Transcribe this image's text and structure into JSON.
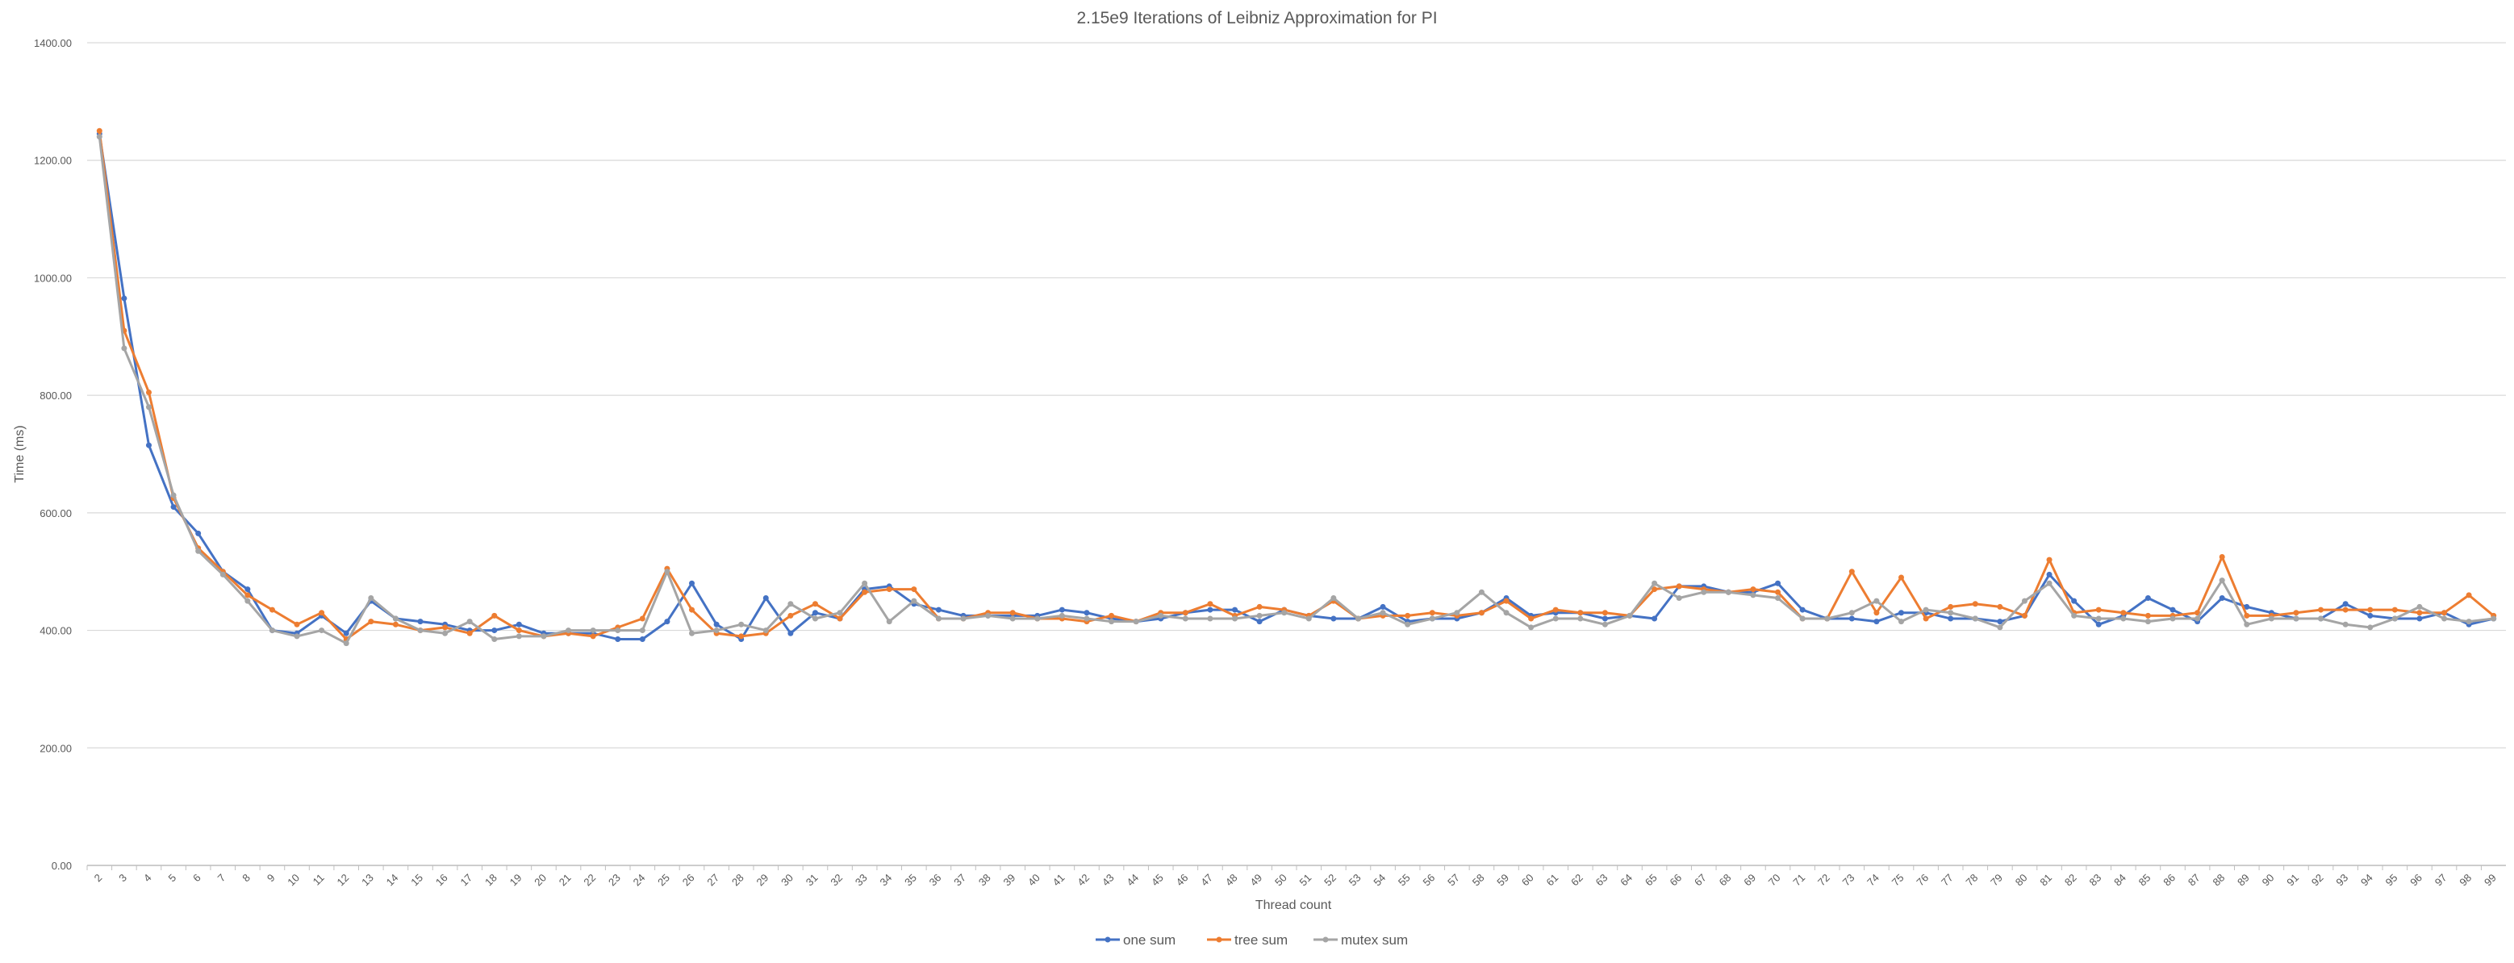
{
  "chart_data": {
    "type": "line",
    "title": "2.15e9 Iterations of Leibniz Approximation for PI",
    "xlabel": "Thread count",
    "ylabel": "Time (ms)",
    "ylim": [
      0,
      1400
    ],
    "yticks": [
      "0.00",
      "200.00",
      "400.00",
      "600.00",
      "800.00",
      "1000.00",
      "1200.00",
      "1400.00"
    ],
    "grid": "horizontal",
    "legend_position": "bottom",
    "x": [
      2,
      3,
      4,
      5,
      6,
      7,
      8,
      9,
      10,
      11,
      12,
      13,
      14,
      15,
      16,
      17,
      18,
      19,
      20,
      21,
      22,
      23,
      24,
      25,
      26,
      27,
      28,
      29,
      30,
      31,
      32,
      33,
      34,
      35,
      36,
      37,
      38,
      39,
      40,
      41,
      42,
      43,
      44,
      45,
      46,
      47,
      48,
      49,
      50,
      51,
      52,
      53,
      54,
      55,
      56,
      57,
      58,
      59,
      60,
      61,
      62,
      63,
      64,
      65,
      66,
      67,
      68,
      69,
      70,
      71,
      72,
      73,
      74,
      75,
      76,
      77,
      78,
      79,
      80,
      81,
      82,
      83,
      84,
      85,
      86,
      87,
      88,
      89,
      90,
      91,
      92,
      93,
      94,
      95,
      96,
      97,
      98,
      99
    ],
    "series": [
      {
        "name": "one sum",
        "color": "#4472C4",
        "values": [
          1245,
          965,
          715,
          610,
          565,
          500,
          470,
          400,
          395,
          425,
          395,
          450,
          420,
          415,
          410,
          400,
          400,
          410,
          395,
          395,
          395,
          385,
          385,
          415,
          480,
          410,
          385,
          455,
          395,
          430,
          420,
          470,
          475,
          445,
          435,
          425,
          425,
          425,
          425,
          435,
          430,
          420,
          415,
          420,
          430,
          435,
          435,
          415,
          435,
          425,
          420,
          420,
          440,
          415,
          420,
          420,
          430,
          455,
          425,
          430,
          430,
          420,
          425,
          420,
          475,
          475,
          465,
          465,
          480,
          435,
          420,
          420,
          415,
          430,
          430,
          420,
          420,
          415,
          425,
          495,
          450,
          410,
          425,
          455,
          435,
          415,
          455,
          440,
          430,
          420,
          420,
          445,
          425,
          420,
          420,
          430,
          410,
          420
        ]
      },
      {
        "name": "tree sum",
        "color": "#ED7D31",
        "values": [
          1250,
          910,
          805,
          625,
          540,
          500,
          460,
          435,
          410,
          430,
          385,
          415,
          410,
          400,
          405,
          395,
          425,
          400,
          390,
          395,
          390,
          405,
          420,
          505,
          435,
          395,
          390,
          395,
          425,
          445,
          420,
          465,
          470,
          470,
          420,
          420,
          430,
          430,
          420,
          420,
          415,
          425,
          415,
          430,
          430,
          445,
          425,
          440,
          435,
          425,
          450,
          420,
          425,
          425,
          430,
          425,
          430,
          450,
          420,
          435,
          430,
          430,
          425,
          470,
          475,
          470,
          465,
          470,
          465,
          420,
          420,
          500,
          430,
          490,
          420,
          440,
          445,
          440,
          425,
          520,
          430,
          435,
          430,
          425,
          425,
          430,
          525,
          425,
          425,
          430,
          435,
          435,
          435,
          435,
          430,
          430,
          460,
          425
        ]
      },
      {
        "name": "mutex sum",
        "color": "#A5A5A5",
        "values": [
          1240,
          880,
          780,
          630,
          535,
          495,
          450,
          400,
          390,
          400,
          378,
          455,
          420,
          400,
          395,
          415,
          385,
          390,
          390,
          400,
          400,
          400,
          400,
          500,
          395,
          400,
          410,
          400,
          445,
          420,
          430,
          480,
          415,
          450,
          420,
          420,
          425,
          420,
          420,
          425,
          420,
          415,
          415,
          425,
          420,
          420,
          420,
          425,
          430,
          420,
          455,
          420,
          430,
          410,
          420,
          430,
          465,
          430,
          405,
          420,
          420,
          410,
          425,
          480,
          455,
          465,
          465,
          460,
          455,
          420,
          420,
          430,
          450,
          415,
          435,
          430,
          420,
          405,
          450,
          480,
          425,
          420,
          420,
          415,
          420,
          420,
          485,
          410,
          420,
          420,
          420,
          410,
          405,
          420,
          440,
          420,
          415,
          420
        ]
      }
    ]
  }
}
